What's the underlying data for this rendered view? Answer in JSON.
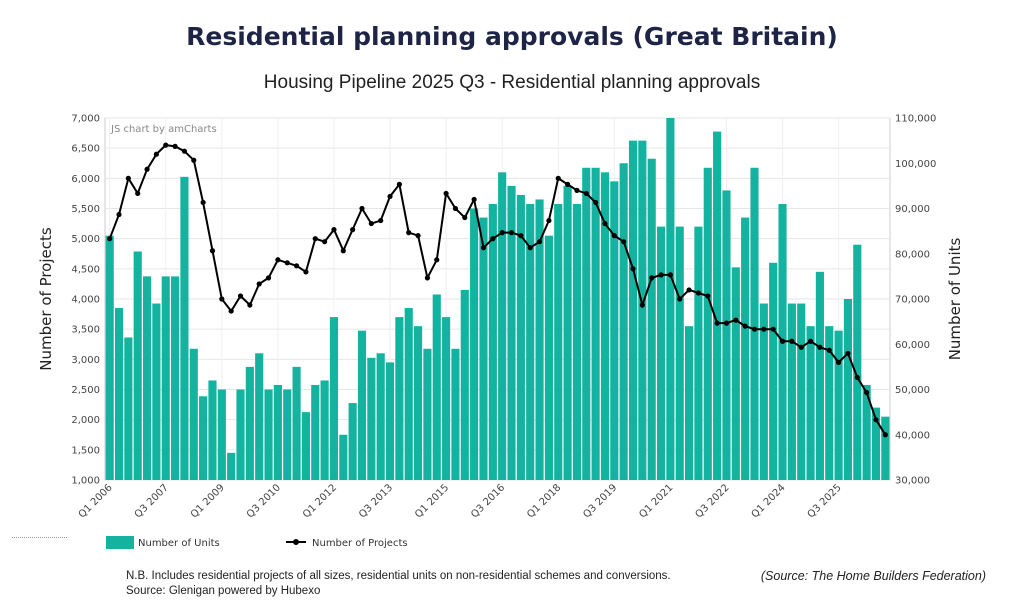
{
  "header": {
    "title": "Residential planning approvals (Great Britain)",
    "subtitle": "Housing Pipeline 2025 Q3 - Residential planning approvals"
  },
  "footer": {
    "note": "N.B. Includes residential projects of all sizes, residential units on non-residential schemes and conversions.",
    "source_line": "Source: Glenigan powered by Hubexo",
    "attribution": "(Source: The Home Builders Federation)"
  },
  "chart_data": {
    "type": "bar",
    "credit": "JS chart by amCharts",
    "ylabel_left": "Number of Projects",
    "ylabel_right": "Number of Units",
    "ylim_left": [
      1000,
      7000
    ],
    "ylim_right": [
      30000,
      110000
    ],
    "left_ticks": [
      "1,000",
      "1,500",
      "2,000",
      "2,500",
      "3,000",
      "3,500",
      "4,000",
      "4,500",
      "5,000",
      "5,500",
      "6,000",
      "6,500",
      "7,000"
    ],
    "right_ticks": [
      "30,000",
      "40,000",
      "50,000",
      "60,000",
      "70,000",
      "80,000",
      "90,000",
      "100,000",
      "110,000"
    ],
    "x_tick_labels": [
      "Q1 2006",
      "Q3 2007",
      "Q1 2009",
      "Q3 2010",
      "Q1 2012",
      "Q3 2013",
      "Q1 2015",
      "Q3 2016",
      "Q1 2018",
      "Q3 2019",
      "Q1 2021",
      "Q3 2022",
      "Q1 2024",
      "Q3 2025"
    ],
    "grid": true,
    "legend": {
      "position": "bottom-left",
      "items": [
        "Number of Units",
        "Number of Projects"
      ]
    },
    "colors": {
      "units": "#14b3a0",
      "projects": "#000000"
    },
    "series": [
      {
        "name": "Number of Units",
        "axis": "right",
        "type": "bar",
        "values": [
          84000,
          68000,
          61500,
          80500,
          75000,
          69000,
          75000,
          75000,
          97000,
          59000,
          48500,
          52000,
          50000,
          36000,
          50000,
          55000,
          58000,
          50000,
          51000,
          50000,
          55000,
          45000,
          51000,
          52000,
          66000,
          40000,
          47000,
          63000,
          57000,
          58000,
          56000,
          66000,
          68000,
          64000,
          59000,
          71000,
          66000,
          59000,
          72000,
          90000,
          88000,
          91000,
          98000,
          95000,
          93000,
          91000,
          92000,
          84000,
          91000,
          95000,
          91000,
          99000,
          99000,
          98000,
          96000,
          100000,
          105000,
          105000,
          101000,
          86000,
          110000,
          86000,
          64000,
          86000,
          99000,
          107000,
          94000,
          77000,
          88000,
          99000,
          69000,
          78000,
          91000,
          69000,
          69000,
          64000,
          76000,
          64000,
          63000,
          70000,
          82000,
          51000,
          46000,
          44000
        ]
      },
      {
        "name": "Number of Projects",
        "axis": "left",
        "type": "line",
        "values": [
          5000,
          5400,
          6000,
          5750,
          6150,
          6400,
          6550,
          6530,
          6450,
          6300,
          5600,
          4800,
          4000,
          3800,
          4050,
          3900,
          4250,
          4350,
          4650,
          4600,
          4550,
          4450,
          5000,
          4950,
          5150,
          4800,
          5150,
          5500,
          5250,
          5300,
          5700,
          5900,
          5100,
          5050,
          4350,
          4650,
          5750,
          5500,
          5350,
          5650,
          4850,
          5000,
          5100,
          5100,
          5050,
          4850,
          4950,
          5300,
          6000,
          5900,
          5800,
          5750,
          5600,
          5250,
          5050,
          4950,
          4500,
          3900,
          4350,
          4400,
          4400,
          4000,
          4150,
          4100,
          4050,
          3600,
          3600,
          3650,
          3550,
          3500,
          3500,
          3500,
          3300,
          3300,
          3200,
          3300,
          3200,
          3150,
          2950,
          3100,
          2700,
          2450,
          2000,
          1750
        ]
      }
    ]
  }
}
